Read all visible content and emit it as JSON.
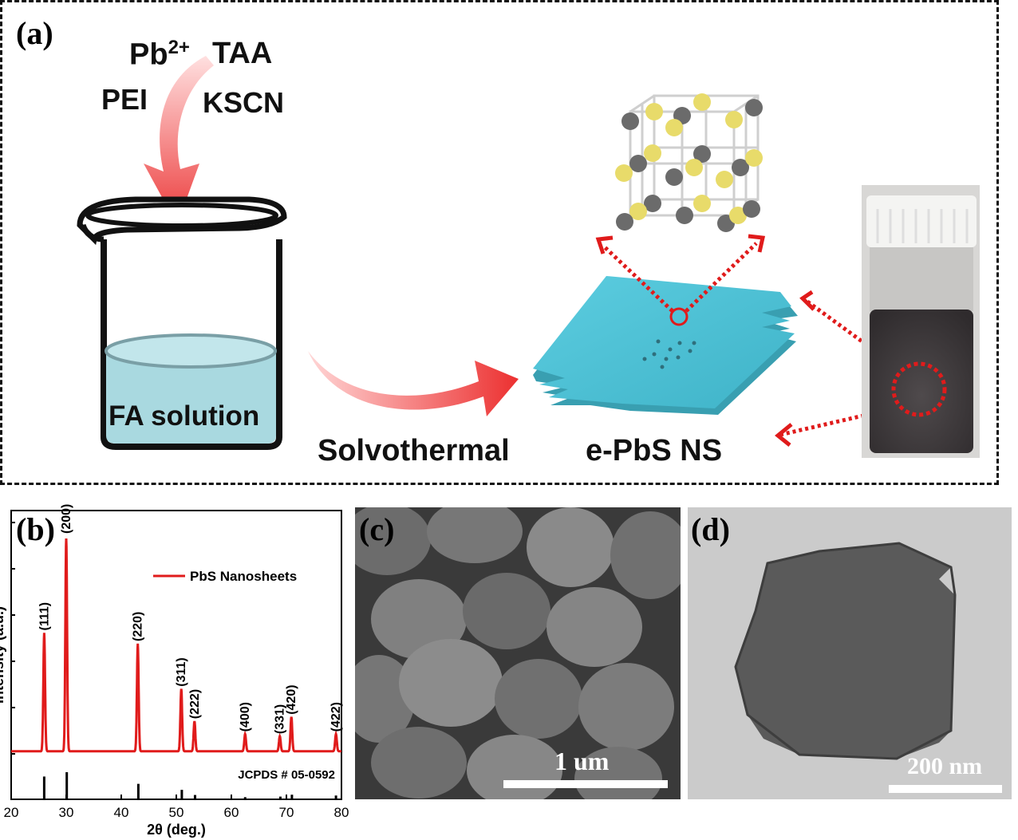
{
  "panel_a": {
    "letter": "(a)",
    "reagents": {
      "pb": "Pb",
      "pb_charge": "2+",
      "taa": "TAA",
      "pei": "PEI",
      "kscn": "KSCN"
    },
    "beaker_label": "FA solution",
    "process_label": "Solvothermal",
    "product_label": "e-PbS NS"
  },
  "panel_b": {
    "letter": "(b)",
    "legend": "PbS Nanosheets",
    "reference": "JCPDS # 05-0592"
  },
  "panel_c": {
    "letter": "(c)",
    "scale_bar": "1 um"
  },
  "panel_d": {
    "letter": "(d)",
    "scale_bar": "200 nm"
  },
  "colors": {
    "pattern": "#e01b1b",
    "sheet": "#4fc0d6",
    "solution": "#a9d9e0",
    "arrow": "#f06a6a"
  },
  "chart_data": {
    "type": "line",
    "title": "",
    "xlabel": "2θ (deg.)",
    "ylabel": "Intensity (a.u.)",
    "xlim": [
      20,
      80
    ],
    "ylim": [
      0,
      100
    ],
    "x_ticks": [
      "20",
      "30",
      "40",
      "50",
      "60",
      "70",
      "80"
    ],
    "series": [
      {
        "name": "PbS Nanosheets",
        "peaks": [
          {
            "x": 26.0,
            "y": 55,
            "label": "(111)"
          },
          {
            "x": 30.0,
            "y": 100,
            "label": "(200)"
          },
          {
            "x": 43.0,
            "y": 50,
            "label": "(220)"
          },
          {
            "x": 50.9,
            "y": 29,
            "label": "(311)"
          },
          {
            "x": 53.3,
            "y": 14,
            "label": "(222)"
          },
          {
            "x": 62.5,
            "y": 8,
            "label": "(400)"
          },
          {
            "x": 68.8,
            "y": 7,
            "label": "(331)"
          },
          {
            "x": 70.9,
            "y": 16,
            "label": "(420)"
          },
          {
            "x": 79.0,
            "y": 8,
            "label": "(422)"
          }
        ]
      }
    ],
    "reference": {
      "name": "JCPDS # 05-0592",
      "lines": [
        {
          "x": 26.0,
          "i": 84
        },
        {
          "x": 30.1,
          "i": 100
        },
        {
          "x": 43.1,
          "i": 57
        },
        {
          "x": 51.0,
          "i": 35
        },
        {
          "x": 53.4,
          "i": 16
        },
        {
          "x": 62.5,
          "i": 8
        },
        {
          "x": 68.9,
          "i": 10
        },
        {
          "x": 71.0,
          "i": 17
        },
        {
          "x": 79.0,
          "i": 14
        }
      ]
    }
  }
}
